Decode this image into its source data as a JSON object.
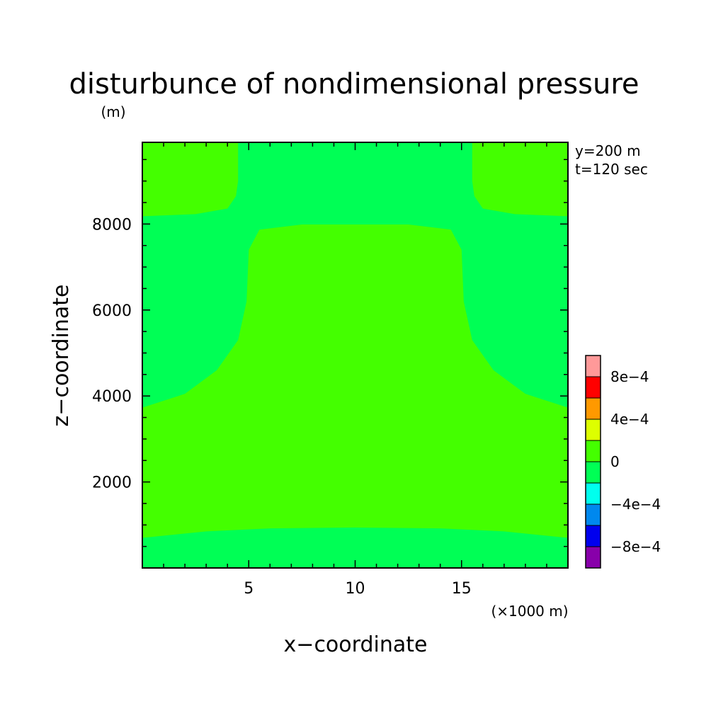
{
  "chart_data": {
    "type": "heatmap",
    "title": "disturbunce of nondimensional pressure",
    "y_unit": "(m)",
    "x_unit": "(×1000 m)",
    "xlabel": "x−coordinate",
    "ylabel": "z−coordinate",
    "xlim": [
      0,
      20
    ],
    "ylim": [
      0,
      9900
    ],
    "x_ticks": [
      5,
      10,
      15
    ],
    "x_tick_labels": [
      "5",
      "10",
      "15"
    ],
    "y_ticks": [
      2000,
      4000,
      6000,
      8000
    ],
    "y_tick_labels": [
      "2000",
      "4000",
      "6000",
      "8000"
    ],
    "annotations": [
      "y=200 m",
      "t=120 sec"
    ],
    "background_level_color": "#00ff55",
    "levels": [
      {
        "range": [
          0,
          0.0002
        ],
        "color": "#44ff00"
      },
      {
        "range": [
          -0.0002,
          0
        ],
        "color": "#00ff55"
      }
    ],
    "colorbar": {
      "colors": [
        "#8800aa",
        "#0000ee",
        "#0088ee",
        "#00ffee",
        "#00ff55",
        "#44ff00",
        "#ddff00",
        "#ff9900",
        "#ff0000",
        "#ff9999"
      ],
      "tick_labels": [
        "−8e−4",
        "−4e−4",
        "0",
        "4e−4",
        "8e−4"
      ]
    },
    "regions": [
      {
        "name": "central-positive-region",
        "level": 0,
        "outline": [
          [
            0,
            700
          ],
          [
            3,
            850
          ],
          [
            6,
            920
          ],
          [
            10,
            940
          ],
          [
            14,
            920
          ],
          [
            17,
            850
          ],
          [
            20,
            700
          ],
          [
            20,
            3730
          ],
          [
            18,
            4050
          ],
          [
            16.5,
            4600
          ],
          [
            15.5,
            5300
          ],
          [
            15.1,
            6200
          ],
          [
            15,
            7400
          ],
          [
            14.5,
            7870
          ],
          [
            12.5,
            7990
          ],
          [
            7.5,
            7990
          ],
          [
            5.5,
            7870
          ],
          [
            5,
            7400
          ],
          [
            4.9,
            6200
          ],
          [
            4.5,
            5300
          ],
          [
            3.5,
            4600
          ],
          [
            2,
            4050
          ],
          [
            0,
            3730
          ]
        ]
      },
      {
        "name": "top-left-positive-region",
        "level": 0,
        "outline": [
          [
            0,
            9900
          ],
          [
            4.5,
            9900
          ],
          [
            4.5,
            9000
          ],
          [
            4.4,
            8650
          ],
          [
            4,
            8360
          ],
          [
            2.5,
            8230
          ],
          [
            0,
            8180
          ]
        ]
      },
      {
        "name": "top-right-positive-region",
        "level": 0,
        "outline": [
          [
            20,
            9900
          ],
          [
            15.5,
            9900
          ],
          [
            15.5,
            9000
          ],
          [
            15.6,
            8650
          ],
          [
            16,
            8360
          ],
          [
            17.5,
            8230
          ],
          [
            20,
            8180
          ]
        ]
      }
    ]
  }
}
